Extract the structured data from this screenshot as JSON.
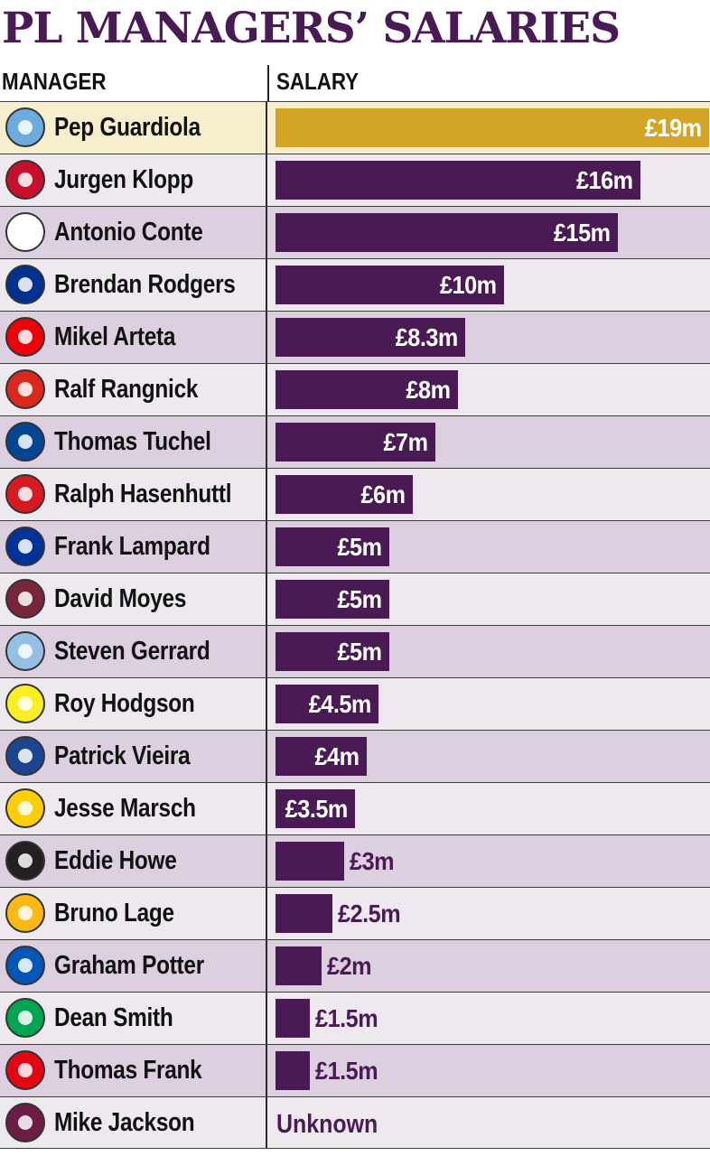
{
  "header": {
    "title": "PL MANAGERS’ SALARIES",
    "col_manager": "MANAGER",
    "col_salary": "SALARY"
  },
  "colors": {
    "bar": "#4a1a55",
    "highlight_bar": "#d4a524",
    "highlight_row": "#f7eecd"
  },
  "chart_data": {
    "type": "bar",
    "orientation": "horizontal",
    "title": "PL MANAGERS’ SALARIES",
    "unit": "£m",
    "xlim": [
      0,
      19
    ],
    "categories": [
      "Pep Guardiola",
      "Jurgen Klopp",
      "Antonio Conte",
      "Brendan Rodgers",
      "Mikel Arteta",
      "Ralf Rangnick",
      "Thomas Tuchel",
      "Ralph Hasenhuttl",
      "Frank Lampard",
      "David Moyes",
      "Steven Gerrard",
      "Roy Hodgson",
      "Patrick Vieira",
      "Jesse Marsch",
      "Eddie Howe",
      "Bruno Lage",
      "Graham Potter",
      "Dean Smith",
      "Thomas Frank",
      "Mike Jackson"
    ],
    "values": [
      19,
      16,
      15,
      10,
      8.3,
      8,
      7,
      6,
      5,
      5,
      5,
      4.5,
      4,
      3.5,
      3,
      2.5,
      2,
      1.5,
      1.5,
      null
    ],
    "labels": [
      "£19m",
      "£16m",
      "£15m",
      "£10m",
      "£8.3m",
      "£8m",
      "£7m",
      "£6m",
      "£5m",
      "£5m",
      "£5m",
      "£4.5m",
      "£4m",
      "£3.5m",
      "£3m",
      "£2.5m",
      "£2m",
      "£1.5m",
      "£1.5m",
      "Unknown"
    ],
    "club_logo_icons": [
      "man-city-crest-icon",
      "liverpool-crest-icon",
      "tottenham-crest-icon",
      "leicester-crest-icon",
      "arsenal-crest-icon",
      "man-united-crest-icon",
      "chelsea-crest-icon",
      "southampton-crest-icon",
      "everton-crest-icon",
      "west-ham-crest-icon",
      "aston-villa-crest-icon",
      "watford-crest-icon",
      "crystal-palace-crest-icon",
      "leeds-crest-icon",
      "newcastle-crest-icon",
      "wolves-crest-icon",
      "brighton-crest-icon",
      "norwich-crest-icon",
      "brentford-crest-icon",
      "burnley-crest-icon"
    ],
    "club_colors": [
      "#6cabdd",
      "#c8102e",
      "#ffffff",
      "#003090",
      "#ef0107",
      "#da291c",
      "#034694",
      "#d71920",
      "#003399",
      "#7a263a",
      "#95bfe5",
      "#fbee23",
      "#1b458f",
      "#ffcd00",
      "#241f20",
      "#fdb913",
      "#0057b8",
      "#00a650",
      "#e30613",
      "#6c1d45"
    ],
    "highlight_index": 0
  }
}
